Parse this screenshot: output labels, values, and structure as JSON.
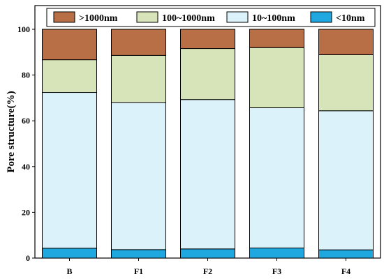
{
  "chart_data": {
    "type": "bar",
    "stacked": true,
    "categories": [
      "B",
      "F1",
      "F2",
      "F3",
      "F4"
    ],
    "series": [
      {
        "name": "<10nm",
        "color": "#1fa8e0",
        "values": [
          4.3,
          3.7,
          4.0,
          4.4,
          3.6
        ]
      },
      {
        "name": "10~100nm",
        "color": "#dbf2fb",
        "values": [
          68.1,
          64.3,
          65.3,
          61.3,
          60.8
        ]
      },
      {
        "name": "100~1000nm",
        "color": "#d7e4b9",
        "values": [
          14.3,
          20.6,
          22.3,
          26.3,
          24.5
        ]
      },
      {
        "name": ">1000nm",
        "color": "#b86f45",
        "values": [
          13.3,
          11.4,
          8.4,
          8.0,
          11.1
        ]
      }
    ],
    "legend_order": [
      ">1000nm",
      "100~1000nm",
      "10~100nm",
      "<10nm"
    ],
    "ylabel": "Pore structure(%)",
    "xlabel": "",
    "ylim": [
      0,
      100
    ],
    "yticks": [
      "0",
      "20",
      "40",
      "60",
      "80",
      "100"
    ],
    "grid": false,
    "legend_position": "top"
  }
}
